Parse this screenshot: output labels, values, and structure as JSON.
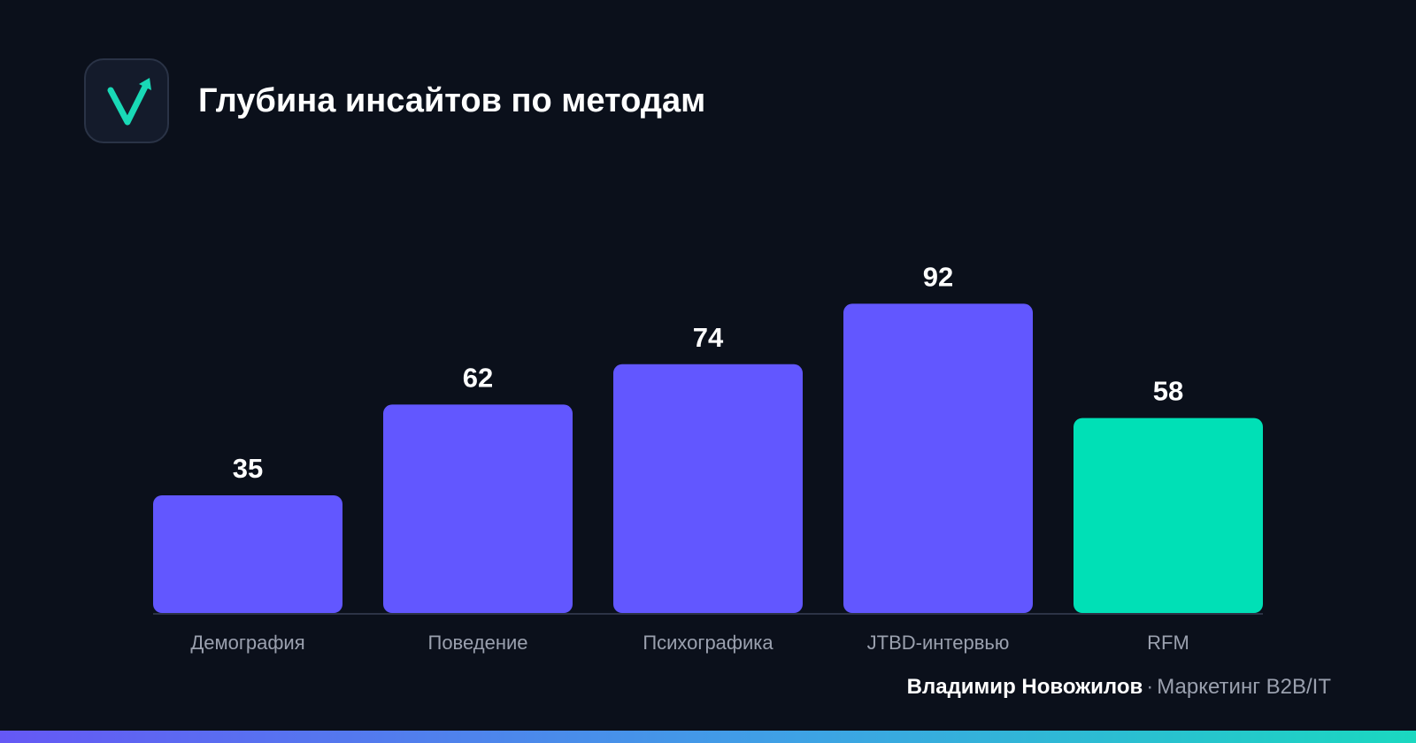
{
  "header": {
    "title": "Глубина инсайтов по методам",
    "logo_icon": "checkmark-arrow-icon"
  },
  "chart_data": {
    "type": "bar",
    "title": "Глубина инсайтов по методам",
    "categories": [
      "Демография",
      "Поведение",
      "Психографика",
      "JTBD-интервью",
      "RFM"
    ],
    "values": [
      35,
      62,
      74,
      92,
      58
    ],
    "colors": [
      "#6257ff",
      "#6257ff",
      "#6257ff",
      "#6257ff",
      "#00e0b6"
    ],
    "xlabel": "",
    "ylabel": "",
    "ylim": [
      0,
      100
    ],
    "grid": false,
    "legend": "none"
  },
  "footer": {
    "author": "Владимир Новожилов",
    "separator": "·",
    "tagline": "Маркетинг B2B/IT"
  },
  "colors": {
    "background": "#0b101b",
    "accent": "#6257ff",
    "highlight": "#00e0b6",
    "text": "#ffffff",
    "muted": "#9aa0ae"
  }
}
